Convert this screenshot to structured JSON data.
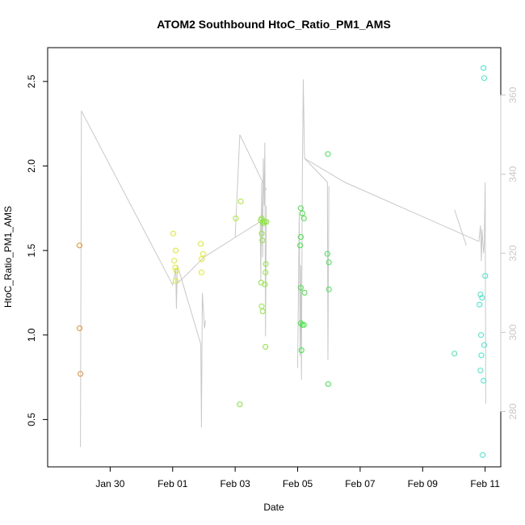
{
  "chart_data": {
    "type": "scatter",
    "title": "ATOM2 Southbound HtoC_Ratio_PM1_AMS",
    "xlabel": "Date",
    "ylabel": "HtoC_Ratio_PM1_AMS",
    "x_ticks": [
      "Jan 30",
      "Feb 01",
      "Feb 03",
      "Feb 05",
      "Feb 07",
      "Feb 09",
      "Feb 11"
    ],
    "x_tick_values": [
      29.0,
      31.0,
      33.0,
      35.0,
      37.0,
      39.0,
      41.0
    ],
    "xlim": [
      27.0,
      41.5
    ],
    "y_ticks": [
      "0.5",
      "1.0",
      "1.5",
      "2.0",
      "2.5"
    ],
    "y_tick_values": [
      0.5,
      1.0,
      1.5,
      2.0,
      2.5
    ],
    "ylim": [
      0.22,
      2.7
    ],
    "right_axis": {
      "ticks": [
        "280",
        "300",
        "320",
        "340",
        "360"
      ],
      "tick_values": [
        280,
        300,
        320,
        340,
        360
      ],
      "ylim": [
        266,
        372
      ],
      "color": "#c8c8c8"
    },
    "points": [
      {
        "x": 28.02,
        "y": 1.53,
        "color": "#f08c28"
      },
      {
        "x": 28.02,
        "y": 1.04,
        "color": "#f08c28"
      },
      {
        "x": 28.05,
        "y": 0.77,
        "color": "#f08c28"
      },
      {
        "x": 31.02,
        "y": 1.6,
        "color": "#dcec1e"
      },
      {
        "x": 31.05,
        "y": 1.44,
        "color": "#dcec1e"
      },
      {
        "x": 31.1,
        "y": 1.5,
        "color": "#dcec1e"
      },
      {
        "x": 31.08,
        "y": 1.4,
        "color": "#dcec1e"
      },
      {
        "x": 31.12,
        "y": 1.38,
        "color": "#dcec1e"
      },
      {
        "x": 31.1,
        "y": 1.32,
        "color": "#dcec1e"
      },
      {
        "x": 31.9,
        "y": 1.54,
        "color": "#dcec1e"
      },
      {
        "x": 31.93,
        "y": 1.45,
        "color": "#dcec1e"
      },
      {
        "x": 31.97,
        "y": 1.48,
        "color": "#dcec1e"
      },
      {
        "x": 31.92,
        "y": 1.37,
        "color": "#dcec1e"
      },
      {
        "x": 33.02,
        "y": 1.69,
        "color": "#a8ec28"
      },
      {
        "x": 33.18,
        "y": 1.79,
        "color": "#a8ec28"
      },
      {
        "x": 33.15,
        "y": 0.59,
        "color": "#7ce832"
      },
      {
        "x": 33.82,
        "y": 1.68,
        "color": "#8ce83a"
      },
      {
        "x": 33.85,
        "y": 1.69,
        "color": "#8ce83a"
      },
      {
        "x": 33.88,
        "y": 1.67,
        "color": "#8ce83a"
      },
      {
        "x": 33.9,
        "y": 1.66,
        "color": "#8ce83a"
      },
      {
        "x": 33.95,
        "y": 1.67,
        "color": "#8ce83a"
      },
      {
        "x": 34.0,
        "y": 1.67,
        "color": "#8ce83a"
      },
      {
        "x": 33.85,
        "y": 1.6,
        "color": "#8ce83a"
      },
      {
        "x": 33.87,
        "y": 1.56,
        "color": "#8ce83a"
      },
      {
        "x": 33.98,
        "y": 1.42,
        "color": "#8ce83a"
      },
      {
        "x": 33.97,
        "y": 1.37,
        "color": "#8ce83a"
      },
      {
        "x": 33.83,
        "y": 1.31,
        "color": "#8ce83a"
      },
      {
        "x": 33.95,
        "y": 1.3,
        "color": "#8ce83a"
      },
      {
        "x": 33.85,
        "y": 1.17,
        "color": "#8ce83a"
      },
      {
        "x": 33.88,
        "y": 1.14,
        "color": "#8ce83a"
      },
      {
        "x": 33.97,
        "y": 0.93,
        "color": "#8ce83a"
      },
      {
        "x": 35.1,
        "y": 1.75,
        "color": "#3ce83c"
      },
      {
        "x": 35.15,
        "y": 1.72,
        "color": "#3ce83c"
      },
      {
        "x": 35.2,
        "y": 1.69,
        "color": "#3ce83c"
      },
      {
        "x": 35.1,
        "y": 1.58,
        "color": "#3ce83c"
      },
      {
        "x": 35.08,
        "y": 1.53,
        "color": "#3ce83c"
      },
      {
        "x": 35.1,
        "y": 1.28,
        "color": "#3ce83c"
      },
      {
        "x": 35.22,
        "y": 1.25,
        "color": "#3ce83c"
      },
      {
        "x": 35.1,
        "y": 1.07,
        "color": "#3ce83c"
      },
      {
        "x": 35.15,
        "y": 1.06,
        "color": "#3ce83c"
      },
      {
        "x": 35.2,
        "y": 1.06,
        "color": "#3ce83c"
      },
      {
        "x": 35.12,
        "y": 0.91,
        "color": "#3ce83c"
      },
      {
        "x": 35.97,
        "y": 2.07,
        "color": "#3ce850"
      },
      {
        "x": 35.95,
        "y": 1.48,
        "color": "#3ce850"
      },
      {
        "x": 36.0,
        "y": 1.43,
        "color": "#3ce850"
      },
      {
        "x": 36.0,
        "y": 1.27,
        "color": "#3ce850"
      },
      {
        "x": 35.98,
        "y": 0.71,
        "color": "#3ce850"
      },
      {
        "x": 40.02,
        "y": 0.89,
        "color": "#3cecaa"
      },
      {
        "x": 40.95,
        "y": 2.58,
        "color": "#3cecc8"
      },
      {
        "x": 40.97,
        "y": 2.52,
        "color": "#3cecc8"
      },
      {
        "x": 41.0,
        "y": 1.35,
        "color": "#3cecc8"
      },
      {
        "x": 40.85,
        "y": 1.24,
        "color": "#3cecc8"
      },
      {
        "x": 40.9,
        "y": 1.22,
        "color": "#3cecc8"
      },
      {
        "x": 40.82,
        "y": 1.18,
        "color": "#3cecc8"
      },
      {
        "x": 40.87,
        "y": 1.0,
        "color": "#3cecc8"
      },
      {
        "x": 40.97,
        "y": 0.94,
        "color": "#3cecc8"
      },
      {
        "x": 40.88,
        "y": 0.88,
        "color": "#3cecc8"
      },
      {
        "x": 40.85,
        "y": 0.79,
        "color": "#3cecc8"
      },
      {
        "x": 40.95,
        "y": 0.73,
        "color": "#3cecc8"
      },
      {
        "x": 40.92,
        "y": 0.29,
        "color": "#3cecc8"
      }
    ],
    "line_series": {
      "axis": "right",
      "color": "#c8c8c8",
      "segments": [
        [
          [
            28.05,
            271
          ],
          [
            28.08,
            356
          ],
          [
            31.0,
            312
          ],
          [
            31.1,
            316
          ],
          [
            31.12,
            306
          ],
          [
            31.15,
            317
          ],
          [
            31.9,
            297
          ],
          [
            31.92,
            276
          ],
          [
            31.95,
            310
          ],
          [
            32.02,
            301
          ],
          [
            32.05,
            303
          ]
        ],
        [
          [
            31.1,
            312
          ],
          [
            31.5,
            315
          ],
          [
            32.0,
            319
          ],
          [
            33.0,
            324
          ],
          [
            33.8,
            328
          ],
          [
            33.82,
            313
          ],
          [
            33.85,
            338
          ],
          [
            33.88,
            319
          ],
          [
            33.9,
            344
          ],
          [
            33.93,
            332
          ],
          [
            33.95,
            348
          ],
          [
            33.97,
            299
          ],
          [
            34.0,
            332
          ]
        ],
        [
          [
            33.0,
            324
          ],
          [
            33.15,
            350
          ],
          [
            33.7,
            341
          ],
          [
            34.0,
            336
          ]
        ],
        [
          [
            35.0,
            291
          ],
          [
            35.05,
            330
          ],
          [
            35.08,
            294
          ],
          [
            35.1,
            317
          ],
          [
            35.12,
            288
          ],
          [
            35.15,
            339
          ],
          [
            35.18,
            364
          ],
          [
            35.22,
            344
          ],
          [
            35.95,
            338
          ],
          [
            35.97,
            293
          ],
          [
            36.0,
            337
          ]
        ],
        [
          [
            35.22,
            344
          ],
          [
            36.5,
            338
          ],
          [
            38.5,
            331
          ],
          [
            40.8,
            323
          ],
          [
            40.85,
            327
          ],
          [
            40.88,
            318
          ],
          [
            40.9,
            326
          ],
          [
            40.95,
            320
          ],
          [
            40.97,
            322
          ],
          [
            41.0,
            338
          ],
          [
            41.02,
            282
          ]
        ],
        [
          [
            40.02,
            331
          ],
          [
            40.4,
            322
          ]
        ]
      ]
    }
  }
}
